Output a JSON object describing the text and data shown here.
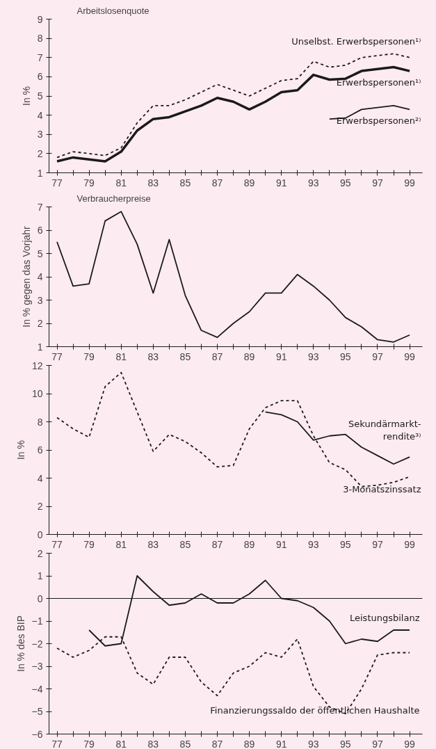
{
  "chart_data": [
    {
      "type": "line",
      "title": "Arbeitslosenquote",
      "ylabel": "In %",
      "x": [
        77,
        78,
        79,
        80,
        81,
        82,
        83,
        84,
        85,
        86,
        87,
        88,
        89,
        90,
        91,
        92,
        93,
        94,
        95,
        96,
        97,
        98,
        99
      ],
      "xlim": [
        76.5,
        99.8
      ],
      "ylim": [
        1,
        9
      ],
      "yticks": [
        1,
        2,
        3,
        4,
        5,
        6,
        7,
        8,
        9
      ],
      "xticks": [
        77,
        {
          "value": 78,
          "label": null
        },
        79,
        {
          "value": 80,
          "label": null
        },
        81,
        {
          "value": 82,
          "label": null
        },
        83,
        {
          "value": 84,
          "label": null
        },
        85,
        {
          "value": 86,
          "label": null
        },
        87,
        {
          "value": 88,
          "label": null
        },
        89,
        {
          "value": 90,
          "label": null
        },
        91,
        {
          "value": 92,
          "label": null
        },
        93,
        {
          "value": 94,
          "label": null
        },
        95,
        {
          "value": 96,
          "label": null
        },
        97,
        {
          "value": 98,
          "label": null
        },
        99
      ],
      "grid": false,
      "legend": false,
      "series": [
        {
          "name": "Unselbst. Erwerbspersonen¹⁾",
          "color": "#1a1a1a",
          "line_style": "dashed",
          "values": [
            1.8,
            2.1,
            2.0,
            1.9,
            2.3,
            3.6,
            4.5,
            4.5,
            4.8,
            5.2,
            5.6,
            5.3,
            5.0,
            5.4,
            5.8,
            5.9,
            6.8,
            6.5,
            6.6,
            7.0,
            7.1,
            7.2,
            7.0
          ]
        },
        {
          "name": "Erwerbspersonen¹⁾",
          "color": "#1a1a1a",
          "line_style": "solid",
          "values": [
            1.6,
            1.8,
            1.7,
            1.6,
            2.1,
            3.2,
            3.8,
            3.9,
            4.2,
            4.5,
            4.9,
            4.7,
            4.3,
            4.7,
            5.2,
            5.3,
            6.1,
            5.85,
            5.9,
            6.3,
            6.4,
            6.5,
            6.3
          ]
        },
        {
          "name": "Erwerbspersonen²⁾",
          "color": "#1a1a1a",
          "line_style": "solid",
          "values": [
            null,
            null,
            null,
            null,
            null,
            null,
            null,
            null,
            null,
            null,
            null,
            null,
            null,
            null,
            null,
            null,
            null,
            3.8,
            3.85,
            4.3,
            4.4,
            4.5,
            4.3
          ]
        }
      ]
    },
    {
      "type": "line",
      "title": "Verbraucherpreise",
      "ylabel": "In % gegen das Vorjahr",
      "x": [
        77,
        78,
        79,
        80,
        81,
        82,
        83,
        84,
        85,
        86,
        87,
        88,
        89,
        90,
        91,
        92,
        93,
        94,
        95,
        96,
        97,
        98,
        99
      ],
      "xlim": [
        76.5,
        99.8
      ],
      "ylim": [
        1,
        7
      ],
      "yticks": [
        1,
        2,
        3,
        4,
        5,
        6,
        7
      ],
      "xticks": [
        77,
        {
          "value": 78,
          "label": null
        },
        79,
        {
          "value": 80,
          "label": null
        },
        81,
        {
          "value": 82,
          "label": null
        },
        83,
        {
          "value": 84,
          "label": null
        },
        85,
        {
          "value": 86,
          "label": null
        },
        87,
        {
          "value": 88,
          "label": null
        },
        89,
        {
          "value": 90,
          "label": null
        },
        91,
        {
          "value": 92,
          "label": null
        },
        93,
        {
          "value": 94,
          "label": null
        },
        95,
        {
          "value": 96,
          "label": null
        },
        97,
        {
          "value": 98,
          "label": null
        },
        99
      ],
      "grid": false,
      "legend": false,
      "series": [
        {
          "color": "#1a1a1a",
          "line_style": "solid",
          "values": [
            5.5,
            3.6,
            3.7,
            6.4,
            6.8,
            5.4,
            3.3,
            5.6,
            3.2,
            1.7,
            1.4,
            2.0,
            2.5,
            3.3,
            3.3,
            4.1,
            3.6,
            3.0,
            2.25,
            1.85,
            1.3,
            1.2,
            1.5
          ]
        }
      ]
    },
    {
      "type": "line",
      "ylabel": "In %",
      "x": [
        77,
        78,
        79,
        80,
        81,
        82,
        83,
        84,
        85,
        86,
        87,
        88,
        89,
        90,
        91,
        92,
        93,
        94,
        95,
        96,
        97,
        98,
        99
      ],
      "xlim": [
        76.5,
        99.8
      ],
      "ylim": [
        0,
        12
      ],
      "yticks": [
        0,
        2,
        4,
        6,
        8,
        10,
        12
      ],
      "xticks": [
        77,
        {
          "value": 78,
          "label": null
        },
        79,
        {
          "value": 80,
          "label": null
        },
        81,
        {
          "value": 82,
          "label": null
        },
        83,
        {
          "value": 84,
          "label": null
        },
        85,
        {
          "value": 86,
          "label": null
        },
        87,
        {
          "value": 88,
          "label": null
        },
        89,
        {
          "value": 90,
          "label": null
        },
        91,
        {
          "value": 92,
          "label": null
        },
        93,
        {
          "value": 94,
          "label": null
        },
        95,
        {
          "value": 96,
          "label": null
        },
        97,
        {
          "value": 98,
          "label": null
        },
        99
      ],
      "grid": false,
      "legend": false,
      "series": [
        {
          "name": "3-Monatszinssatz",
          "color": "#1a1a1a",
          "line_style": "dashed",
          "values": [
            8.3,
            7.5,
            6.9,
            10.5,
            11.5,
            8.7,
            5.9,
            7.1,
            6.6,
            5.8,
            4.8,
            4.9,
            7.5,
            9.0,
            9.5,
            9.5,
            7.0,
            5.1,
            4.6,
            3.4,
            3.5,
            3.7,
            4.1
          ]
        },
        {
          "name": "Sekundärmarkt-rendite³⁾",
          "color": "#1a1a1a",
          "line_style": "solid",
          "values": [
            null,
            null,
            null,
            null,
            null,
            null,
            null,
            null,
            null,
            null,
            null,
            null,
            null,
            8.7,
            8.5,
            8.0,
            6.7,
            7.0,
            7.1,
            6.2,
            5.6,
            5.0,
            5.5
          ]
        }
      ]
    },
    {
      "type": "line",
      "ylabel": "In % des BIP",
      "x": [
        77,
        78,
        79,
        80,
        81,
        82,
        83,
        84,
        85,
        86,
        87,
        88,
        89,
        90,
        91,
        92,
        93,
        94,
        95,
        96,
        97,
        98,
        99
      ],
      "xlim": [
        76.5,
        99.8
      ],
      "ylim": [
        -6,
        2
      ],
      "yticks": [
        -6,
        -5,
        -4,
        -3,
        -2,
        -1,
        0,
        1,
        2
      ],
      "xticks": [
        77,
        {
          "value": 78,
          "label": null
        },
        79,
        {
          "value": 80,
          "label": null
        },
        81,
        {
          "value": 82,
          "label": null
        },
        83,
        {
          "value": 84,
          "label": null
        },
        85,
        {
          "value": 86,
          "label": null
        },
        87,
        {
          "value": 88,
          "label": null
        },
        89,
        {
          "value": 90,
          "label": null
        },
        91,
        {
          "value": 92,
          "label": null
        },
        93,
        {
          "value": 94,
          "label": null
        },
        95,
        {
          "value": 96,
          "label": null
        },
        97,
        {
          "value": 98,
          "label": null
        },
        99
      ],
      "grid": false,
      "legend": false,
      "ref_lines": [
        {
          "axis": "y",
          "value": 0,
          "color": "#1a1a1a",
          "line_style": "solid"
        }
      ],
      "series": [
        {
          "name": "Leistungsbilanz",
          "color": "#1a1a1a",
          "line_style": "solid",
          "values": [
            null,
            null,
            -1.4,
            -2.1,
            -2.0,
            1.0,
            0.3,
            -0.3,
            -0.2,
            0.2,
            -0.2,
            -0.2,
            0.2,
            0.8,
            0.0,
            -0.1,
            -0.4,
            -1.0,
            -2.0,
            -1.8,
            -1.9,
            -1.4,
            -1.4
          ]
        },
        {
          "name": "Finanzierungssaldo der öffentlichen Haushalte",
          "color": "#1a1a1a",
          "line_style": "dashed",
          "values": [
            -2.2,
            -2.6,
            -2.3,
            -1.7,
            -1.7,
            -3.3,
            -3.8,
            -2.6,
            -2.6,
            -3.7,
            -4.3,
            -3.3,
            -3.0,
            -2.4,
            -2.6,
            -1.8,
            -3.9,
            -4.8,
            -5.1,
            -4.0,
            -2.5,
            -2.4,
            -2.4
          ]
        }
      ]
    }
  ]
}
